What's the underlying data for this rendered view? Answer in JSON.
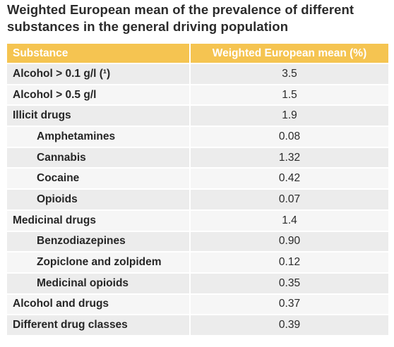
{
  "title": "Weighted European mean of the prevalence of different substances in the general driving population",
  "table": {
    "headers": [
      "Substance",
      "Weighted European mean (%)"
    ],
    "rows": [
      {
        "substance": "Alcohol > 0.1 g/l (¹)",
        "value": "3.5",
        "indent": false
      },
      {
        "substance": "Alcohol > 0.5 g/l",
        "value": "1.5",
        "indent": false
      },
      {
        "substance": "Illicit drugs",
        "value": "1.9",
        "indent": false
      },
      {
        "substance": "Amphetamines",
        "value": "0.08",
        "indent": true
      },
      {
        "substance": "Cannabis",
        "value": "1.32",
        "indent": true
      },
      {
        "substance": "Cocaine",
        "value": "0.42",
        "indent": true
      },
      {
        "substance": "Opioids",
        "value": "0.07",
        "indent": true
      },
      {
        "substance": "Medicinal drugs",
        "value": "1.4",
        "indent": false
      },
      {
        "substance": "Benzodiazepines",
        "value": "0.90",
        "indent": true
      },
      {
        "substance": "Zopiclone and zolpidem",
        "value": "0.12",
        "indent": true
      },
      {
        "substance": "Medicinal opioids",
        "value": "0.35",
        "indent": true
      },
      {
        "substance": "Alcohol and drugs",
        "value": "0.37",
        "indent": false
      },
      {
        "substance": "Different drug classes",
        "value": "0.39",
        "indent": false
      }
    ]
  },
  "colors": {
    "header_background": "#f5c451",
    "header_text": "#ffffff",
    "row_odd": "#ececec",
    "row_even": "#f6f6f6"
  }
}
